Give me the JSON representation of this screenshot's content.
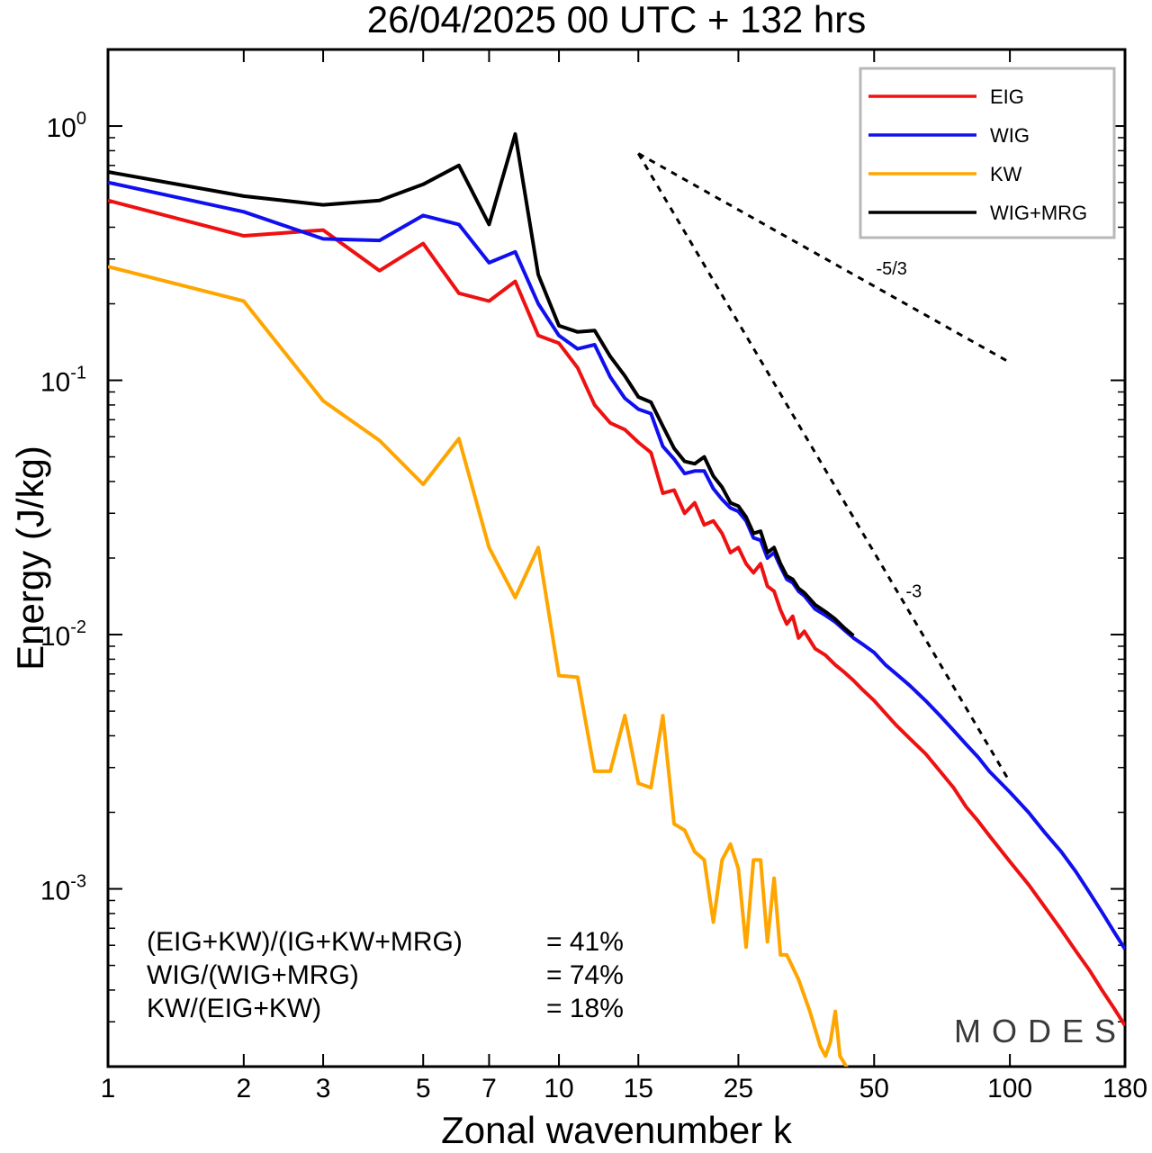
{
  "chart_data": {
    "type": "line",
    "title": "26/04/2025  00 UTC  + 132 hrs",
    "xlabel": "Zonal wavenumber k",
    "ylabel": "Energy (J/kg)",
    "xscale": "log",
    "yscale": "log",
    "xlim": [
      1,
      180
    ],
    "ylim": [
      0.0002,
      2
    ],
    "x_ticks": [
      {
        "value": 1,
        "label": "1"
      },
      {
        "value": 2,
        "label": "2"
      },
      {
        "value": 3,
        "label": "3"
      },
      {
        "value": 5,
        "label": "5"
      },
      {
        "value": 7,
        "label": "7"
      },
      {
        "value": 10,
        "label": "10"
      },
      {
        "value": 15,
        "label": "15"
      },
      {
        "value": 25,
        "label": "25"
      },
      {
        "value": 50,
        "label": "50"
      },
      {
        "value": 100,
        "label": "100"
      },
      {
        "value": 180,
        "label": "180"
      }
    ],
    "y_ticks": [
      {
        "value": 1,
        "base": "10",
        "exp": "0"
      },
      {
        "value": 0.1,
        "base": "10",
        "exp": "-1"
      },
      {
        "value": 0.01,
        "base": "10",
        "exp": "-2"
      },
      {
        "value": 0.001,
        "base": "10",
        "exp": "-3"
      }
    ],
    "legend_position": "top-right",
    "series": [
      {
        "name": "EIG",
        "color": "#ee1111",
        "points": [
          [
            1,
            0.51
          ],
          [
            2,
            0.37
          ],
          [
            3,
            0.39
          ],
          [
            4,
            0.27
          ],
          [
            5,
            0.345
          ],
          [
            6,
            0.22
          ],
          [
            7,
            0.205
          ],
          [
            8,
            0.245
          ],
          [
            9,
            0.15
          ],
          [
            10,
            0.14
          ],
          [
            11,
            0.112
          ],
          [
            12,
            0.08
          ],
          [
            13,
            0.068
          ],
          [
            14,
            0.064
          ],
          [
            15,
            0.057
          ],
          [
            16,
            0.052
          ],
          [
            17,
            0.036
          ],
          [
            18,
            0.037
          ],
          [
            19,
            0.03
          ],
          [
            20,
            0.033
          ],
          [
            21,
            0.027
          ],
          [
            22,
            0.028
          ],
          [
            23,
            0.025
          ],
          [
            24,
            0.021
          ],
          [
            25,
            0.022
          ],
          [
            26,
            0.019
          ],
          [
            27,
            0.0175
          ],
          [
            28,
            0.019
          ],
          [
            29,
            0.0155
          ],
          [
            30,
            0.0148
          ],
          [
            31,
            0.0125
          ],
          [
            32,
            0.011
          ],
          [
            33,
            0.0118
          ],
          [
            34,
            0.0097
          ],
          [
            35,
            0.0103
          ],
          [
            37,
            0.0088
          ],
          [
            39,
            0.0083
          ],
          [
            41,
            0.0076
          ],
          [
            43,
            0.0071
          ],
          [
            45,
            0.0066
          ],
          [
            47,
            0.0061
          ],
          [
            50,
            0.0055
          ],
          [
            53,
            0.0049
          ],
          [
            56,
            0.0044
          ],
          [
            60,
            0.0039
          ],
          [
            65,
            0.0034
          ],
          [
            70,
            0.0029
          ],
          [
            75,
            0.0025
          ],
          [
            80,
            0.0021
          ],
          [
            85,
            0.00185
          ],
          [
            90,
            0.00162
          ],
          [
            100,
            0.00128
          ],
          [
            110,
            0.00104
          ],
          [
            120,
            0.00084
          ],
          [
            130,
            0.00069
          ],
          [
            140,
            0.00057
          ],
          [
            150,
            0.00048
          ],
          [
            160,
            0.0004
          ],
          [
            170,
            0.00034
          ],
          [
            180,
            0.00029
          ]
        ]
      },
      {
        "name": "WIG",
        "color": "#1010ee",
        "points": [
          [
            1,
            0.6
          ],
          [
            2,
            0.46
          ],
          [
            3,
            0.36
          ],
          [
            4,
            0.355
          ],
          [
            5,
            0.445
          ],
          [
            6,
            0.41
          ],
          [
            7,
            0.29
          ],
          [
            8,
            0.32
          ],
          [
            9,
            0.2
          ],
          [
            10,
            0.15
          ],
          [
            11,
            0.133
          ],
          [
            12,
            0.138
          ],
          [
            13,
            0.103
          ],
          [
            14,
            0.085
          ],
          [
            15,
            0.077
          ],
          [
            16,
            0.074
          ],
          [
            17,
            0.055
          ],
          [
            18,
            0.049
          ],
          [
            19,
            0.043
          ],
          [
            20,
            0.044
          ],
          [
            21,
            0.044
          ],
          [
            22,
            0.0375
          ],
          [
            23,
            0.034
          ],
          [
            24,
            0.0315
          ],
          [
            25,
            0.0305
          ],
          [
            26,
            0.028
          ],
          [
            27,
            0.024
          ],
          [
            28,
            0.0235
          ],
          [
            29,
            0.02
          ],
          [
            30,
            0.021
          ],
          [
            31,
            0.0185
          ],
          [
            32,
            0.0165
          ],
          [
            33,
            0.016
          ],
          [
            34,
            0.0148
          ],
          [
            35,
            0.0142
          ],
          [
            37,
            0.0126
          ],
          [
            39,
            0.0119
          ],
          [
            41,
            0.0112
          ],
          [
            43,
            0.0104
          ],
          [
            45,
            0.0097
          ],
          [
            47,
            0.0092
          ],
          [
            50,
            0.0085
          ],
          [
            53,
            0.0076
          ],
          [
            56,
            0.007
          ],
          [
            60,
            0.0063
          ],
          [
            65,
            0.0055
          ],
          [
            70,
            0.0048
          ],
          [
            75,
            0.0042
          ],
          [
            80,
            0.0037
          ],
          [
            85,
            0.0033
          ],
          [
            90,
            0.0029
          ],
          [
            100,
            0.0024
          ],
          [
            110,
            0.002
          ],
          [
            120,
            0.00165
          ],
          [
            130,
            0.0014
          ],
          [
            140,
            0.00117
          ],
          [
            150,
            0.00097
          ],
          [
            160,
            0.00081
          ],
          [
            170,
            0.00068
          ],
          [
            180,
            0.00058
          ]
        ]
      },
      {
        "name": "KW",
        "color": "#ffa500",
        "points": [
          [
            1,
            0.28
          ],
          [
            2,
            0.205
          ],
          [
            3,
            0.083
          ],
          [
            4,
            0.058
          ],
          [
            5,
            0.039
          ],
          [
            6,
            0.059
          ],
          [
            7,
            0.022
          ],
          [
            8,
            0.014
          ],
          [
            9,
            0.022
          ],
          [
            10,
            0.0069
          ],
          [
            11,
            0.0068
          ],
          [
            12,
            0.0029
          ],
          [
            13,
            0.0029
          ],
          [
            14,
            0.0048
          ],
          [
            15,
            0.0026
          ],
          [
            16,
            0.0025
          ],
          [
            17,
            0.0048
          ],
          [
            18,
            0.0018
          ],
          [
            19,
            0.0017
          ],
          [
            20,
            0.0014
          ],
          [
            21,
            0.0013
          ],
          [
            22,
            0.00074
          ],
          [
            23,
            0.0013
          ],
          [
            24,
            0.0015
          ],
          [
            25,
            0.0012
          ],
          [
            26,
            0.00059
          ],
          [
            27,
            0.0013
          ],
          [
            28,
            0.0013
          ],
          [
            29,
            0.00062
          ],
          [
            30,
            0.0011
          ],
          [
            31,
            0.00055
          ],
          [
            32,
            0.00055
          ],
          [
            34,
            0.00044
          ],
          [
            36,
            0.00033
          ],
          [
            38,
            0.00024
          ],
          [
            39,
            0.00022
          ],
          [
            40,
            0.00025
          ],
          [
            41,
            0.00033
          ],
          [
            42,
            0.00022
          ],
          [
            45,
            0.00018
          ]
        ]
      },
      {
        "name": "WIG+MRG",
        "color": "#000000",
        "points": [
          [
            1,
            0.66
          ],
          [
            2,
            0.53
          ],
          [
            3,
            0.49
          ],
          [
            4,
            0.51
          ],
          [
            5,
            0.59
          ],
          [
            6,
            0.7
          ],
          [
            7,
            0.41
          ],
          [
            8,
            0.93
          ],
          [
            9,
            0.26
          ],
          [
            10,
            0.164
          ],
          [
            11,
            0.155
          ],
          [
            12,
            0.157
          ],
          [
            13,
            0.124
          ],
          [
            14,
            0.104
          ],
          [
            15,
            0.086
          ],
          [
            16,
            0.082
          ],
          [
            17,
            0.066
          ],
          [
            18,
            0.054
          ],
          [
            19,
            0.048
          ],
          [
            20,
            0.047
          ],
          [
            21,
            0.05
          ],
          [
            22,
            0.042
          ],
          [
            23,
            0.038
          ],
          [
            24,
            0.033
          ],
          [
            25,
            0.032
          ],
          [
            26,
            0.029
          ],
          [
            27,
            0.025
          ],
          [
            28,
            0.0255
          ],
          [
            29,
            0.021
          ],
          [
            30,
            0.022
          ],
          [
            31,
            0.019
          ],
          [
            32,
            0.017
          ],
          [
            33,
            0.0165
          ],
          [
            34,
            0.0152
          ],
          [
            35,
            0.0146
          ],
          [
            37,
            0.0131
          ],
          [
            39,
            0.0123
          ],
          [
            41,
            0.0115
          ],
          [
            43,
            0.0106
          ],
          [
            45,
            0.0099
          ]
        ]
      }
    ],
    "reference_lines": [
      {
        "label": "-5/3",
        "slope": -1.6667,
        "from": [
          15,
          0.78
        ],
        "to": [
          100,
          0.1175
        ]
      },
      {
        "label": "-3",
        "slope": -3,
        "from": [
          15,
          0.78
        ],
        "to": [
          100,
          0.00263
        ]
      }
    ]
  },
  "stats": [
    {
      "label": "(EIG+KW)/(IG+KW+MRG)",
      "value": "= 41%"
    },
    {
      "label": "WIG/(WIG+MRG)",
      "value": "= 74%"
    },
    {
      "label": "KW/(EIG+KW)",
      "value": "= 18%"
    }
  ],
  "watermark": "MODES"
}
